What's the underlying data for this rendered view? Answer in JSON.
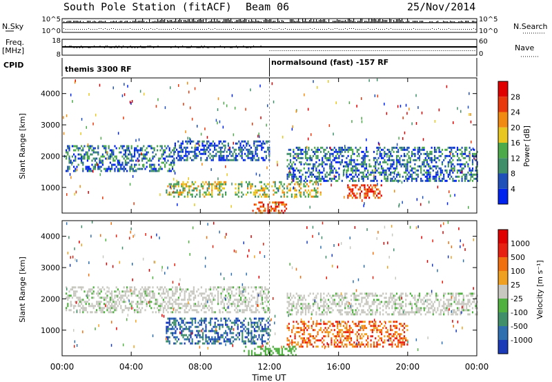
{
  "header": {
    "station": "South Pole Station (fitACF)",
    "beam": "Beam 06",
    "date": "25/Nov/2014"
  },
  "top_panels": {
    "nsky_label": "N.Sky",
    "nsearch_label": "N.Search",
    "nsky_ticks": [
      "10^5",
      "10^0"
    ],
    "nsearch_ticks": [
      "10^5",
      "10^0"
    ],
    "freq_label": "Freq.",
    "freq_unit": "[MHz]",
    "freq_ticks": [
      "18",
      "8"
    ],
    "nave_label": "Nave",
    "nave_ticks": [
      "60",
      "0"
    ],
    "cpid_label": "CPID",
    "cpid_segments": [
      {
        "label": "themis 3300 RF",
        "start_hour": 0,
        "end_hour": 12
      },
      {
        "label": "normalsound (fast) -157 RF",
        "start_hour": 12,
        "end_hour": 24
      }
    ]
  },
  "chart_data": [
    {
      "type": "heatmap",
      "name": "power",
      "ylabel": "Slant Range [km]",
      "y_ticks": [
        "1000",
        "2000",
        "3000",
        "4000"
      ],
      "ylim": [
        180,
        4500
      ],
      "xlim": [
        0,
        24
      ],
      "colorbar": {
        "label": "Power [dB]",
        "ticks": [
          "4",
          "8",
          "12",
          "16",
          "20",
          "24",
          "28"
        ],
        "colors": [
          "#0022ee",
          "#1f4fb8",
          "#3f8f6a",
          "#4caa4a",
          "#e8c820",
          "#f08a10",
          "#e8380c",
          "#e00000"
        ]
      },
      "echo_regions": [
        {
          "t0": 0.2,
          "t1": 6.5,
          "r0": 1550,
          "r1": 2350,
          "level": "low-mid"
        },
        {
          "t0": 6.5,
          "t1": 12.0,
          "r0": 1900,
          "r1": 2500,
          "level": "low"
        },
        {
          "t0": 13.0,
          "t1": 24.0,
          "r0": 1200,
          "r1": 2300,
          "level": "low-mid"
        },
        {
          "t0": 6.0,
          "t1": 9.5,
          "r0": 700,
          "r1": 1200,
          "level": "mid"
        },
        {
          "t0": 10.0,
          "t1": 15.0,
          "r0": 700,
          "r1": 1200,
          "level": "mid"
        },
        {
          "t0": 11.0,
          "t1": 13.0,
          "r0": 200,
          "r1": 550,
          "level": "high"
        },
        {
          "t0": 16.5,
          "t1": 18.5,
          "r0": 650,
          "r1": 1100,
          "level": "high"
        }
      ]
    },
    {
      "type": "heatmap",
      "name": "velocity",
      "ylabel": "Slant Range [km]",
      "y_ticks": [
        "1000",
        "2000",
        "3000",
        "4000"
      ],
      "ylim": [
        180,
        4500
      ],
      "xlim": [
        0,
        24
      ],
      "xlabel": "Time UT",
      "x_ticks": [
        "00:00",
        "04:00",
        "08:00",
        "12:00",
        "16:00",
        "20:00",
        "00:00"
      ],
      "colorbar": {
        "label": "Velocity [m s⁻¹]",
        "ticks": [
          "1000",
          "500",
          "100",
          "25",
          "-25",
          "-100",
          "-500",
          "-1000"
        ],
        "colors": [
          "#1a3ab8",
          "#2e6fb0",
          "#3f8f6a",
          "#50b040",
          "#c8c8c0",
          "#f0a020",
          "#f07010",
          "#e82010",
          "#e00000"
        ]
      },
      "echo_regions": [
        {
          "t0": 0.2,
          "t1": 12.0,
          "r0": 1550,
          "r1": 2400,
          "level": "ground-scatter"
        },
        {
          "t0": 13.0,
          "t1": 24.0,
          "r0": 1500,
          "r1": 2200,
          "level": "ground-scatter"
        },
        {
          "t0": 6.0,
          "t1": 12.0,
          "r0": 600,
          "r1": 1400,
          "level": "toward"
        },
        {
          "t0": 13.0,
          "t1": 20.0,
          "r0": 500,
          "r1": 1300,
          "level": "away"
        },
        {
          "t0": 10.5,
          "t1": 13.5,
          "r0": 180,
          "r1": 500,
          "level": "slow-toward"
        }
      ]
    }
  ]
}
